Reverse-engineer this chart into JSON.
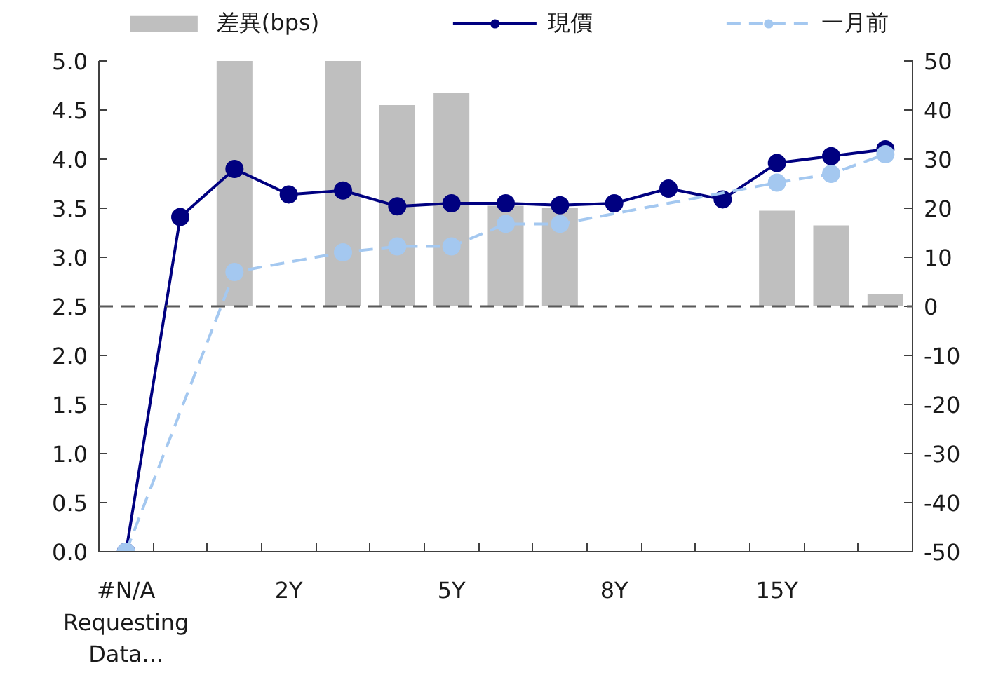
{
  "chart_data": {
    "type": "bar",
    "categories": [
      "#N/A Requesting Data...",
      null,
      null,
      "2Y",
      null,
      null,
      "5Y",
      null,
      null,
      "8Y",
      null,
      null,
      "15Y",
      null,
      null
    ],
    "series": [
      {
        "name": "差異(bps)",
        "type": "bar",
        "axis": "y2",
        "color": "#bfbfbf",
        "values": [
          null,
          null,
          50,
          null,
          50,
          41,
          43.5,
          20.5,
          20,
          null,
          null,
          null,
          19.5,
          16.5,
          2.5
        ]
      },
      {
        "name": "現價",
        "type": "line",
        "color": "#000080",
        "values": [
          0,
          3.41,
          3.9,
          3.64,
          3.68,
          3.52,
          3.55,
          3.55,
          3.53,
          3.55,
          3.7,
          3.59,
          3.96,
          4.03,
          4.1
        ]
      },
      {
        "name": "一月前",
        "type": "line",
        "color": "#a4c8f0",
        "line_style": "dashed",
        "values": [
          0,
          null,
          2.85,
          null,
          3.05,
          3.11,
          3.11,
          3.34,
          3.34,
          null,
          null,
          null,
          3.76,
          3.85,
          4.05
        ]
      }
    ],
    "ylim": [
      0,
      5
    ],
    "yticks": [
      {
        "value": 0,
        "label": "0.0"
      },
      0.5,
      {
        "value": 1,
        "label": "1.0"
      },
      1.5,
      {
        "value": 2,
        "label": "2.0"
      },
      2.5,
      {
        "value": 3,
        "label": "3.0"
      },
      3.5,
      {
        "value": 4,
        "label": "4.0"
      },
      4.5,
      {
        "value": 5,
        "label": "5.0"
      }
    ],
    "y2lim": [
      -50,
      50
    ],
    "y2ticks": [
      -50,
      -40,
      -30,
      -20,
      -10,
      0,
      10,
      20,
      30,
      40,
      50
    ],
    "ref_lines": [
      {
        "axis": "y2",
        "value": 0,
        "color": "#595959",
        "line_style": "dashed"
      }
    ],
    "marker": "circle",
    "line_style": "solid",
    "legend": "top",
    "grid": false
  }
}
